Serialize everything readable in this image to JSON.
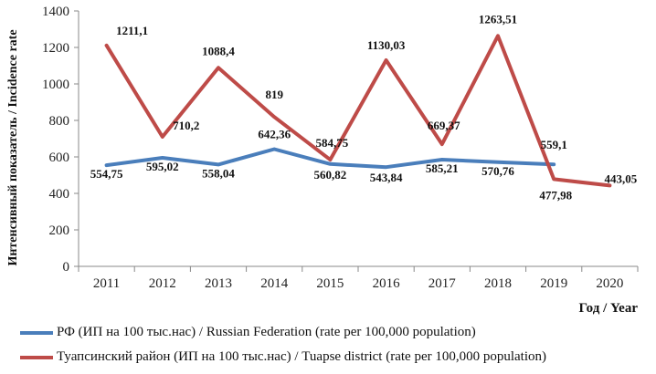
{
  "chart_data": {
    "type": "line",
    "categories": [
      "2011",
      "2012",
      "2013",
      "2014",
      "2015",
      "2016",
      "2017",
      "2018",
      "2019",
      "2020"
    ],
    "series": [
      {
        "name": "РФ (ИП на 100 тыс.нас) / Russian Federation (rate per 100,000 population)",
        "color": "#4a7ebb",
        "values": [
          554.75,
          595.02,
          558.04,
          642.36,
          560.82,
          543.84,
          585.21,
          570.76,
          559.1,
          null
        ],
        "labels": [
          "554,75",
          "595,02",
          "558,04",
          "642,36",
          "560,82",
          "543,84",
          "585,21",
          "570,76",
          "559,1",
          null
        ]
      },
      {
        "name": "Туапсинский район (ИП на 100 тыс.нас) / Tuapse district (rate per 100,000 population)",
        "color": "#be4b48",
        "values": [
          1211.1,
          710.2,
          1088.4,
          819,
          584.75,
          1130.03,
          669.37,
          1263.51,
          477.98,
          443.05
        ],
        "labels": [
          "1211,1",
          "710,2",
          "1088,4",
          "819",
          "584,75",
          "1130,03",
          "669,37",
          "1263,51",
          "477,98",
          "443,05"
        ]
      }
    ],
    "yticks": [
      "0",
      "200",
      "400",
      "600",
      "800",
      "1000",
      "1200",
      "1400"
    ],
    "ylim": [
      0,
      1400
    ],
    "ylabel": "Интенсивный показатель / Incidence rate",
    "xlabel": "Год / Year",
    "grid": false,
    "legend_position": "bottom"
  }
}
